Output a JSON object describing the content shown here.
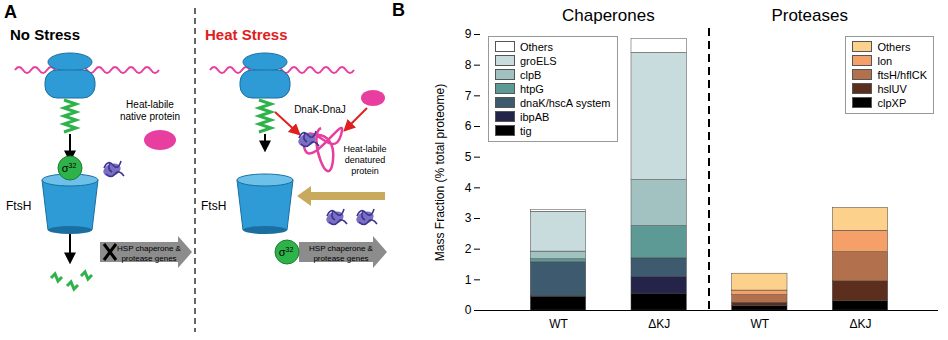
{
  "diagram": {
    "label": "A",
    "panels": [
      {
        "title": "No Stress",
        "protein": [
          "Heat-labile",
          "native protein"
        ],
        "protease": "FtsH",
        "sigma": {
          "symbol": "σ",
          "superscript": "32"
        },
        "genes": [
          "HSP chaperone &",
          "protease genes"
        ]
      },
      {
        "title": "Heat Stress",
        "chaperone": "DnaK-DnaJ",
        "protein": [
          "Heat-labile",
          "denatured",
          "protein"
        ],
        "protease": "FtsH",
        "sigma": {
          "symbol": "σ",
          "superscript": "32"
        },
        "genes": [
          "HSP chaperone &",
          "protease genes"
        ]
      }
    ]
  },
  "chart_data": {
    "type": "bar",
    "panel_label": "B",
    "stacked": true,
    "y_label": "Mass Fraction (% total proteome)",
    "ylim": [
      0,
      9
    ],
    "yticks": [
      0,
      1,
      2,
      3,
      4,
      5,
      6,
      7,
      8,
      9
    ],
    "groups": [
      {
        "title": "Chaperones",
        "legend": "upper left",
        "categories": [
          "WT",
          "ΔKJ"
        ],
        "series": [
          {
            "name": "tig",
            "color": "#000000",
            "values": [
              0.45,
              0.55
            ]
          },
          {
            "name": "ibpAB",
            "color": "#24244a",
            "values": [
              0.02,
              0.55
            ]
          },
          {
            "name": "dnaK/hscA system",
            "color": "#3d5a6e",
            "values": [
              1.1,
              0.6
            ]
          },
          {
            "name": "htpG",
            "color": "#5e9a95",
            "values": [
              0.1,
              1.05
            ]
          },
          {
            "name": "clpB",
            "color": "#a2c2c2",
            "values": [
              0.25,
              1.5
            ]
          },
          {
            "name": "groELS",
            "color": "#c9dcdd",
            "values": [
              1.3,
              4.15
            ]
          },
          {
            "name": "Others",
            "color": "#ffffff",
            "values": [
              0.05,
              0.45
            ]
          }
        ]
      },
      {
        "title": "Proteases",
        "legend": "upper right",
        "categories": [
          "WT",
          "ΔKJ"
        ],
        "series": [
          {
            "name": "clpXP",
            "color": "#000000",
            "values": [
              0.15,
              0.3
            ]
          },
          {
            "name": "hslUV",
            "color": "#5c2e1e",
            "values": [
              0.1,
              0.65
            ]
          },
          {
            "name": "ftsH/hflCK",
            "color": "#b3704c",
            "values": [
              0.25,
              0.95
            ]
          },
          {
            "name": "lon",
            "color": "#f4a068",
            "values": [
              0.15,
              0.7
            ]
          },
          {
            "name": "Others",
            "color": "#fcd18c",
            "values": [
              0.55,
              0.75
            ]
          }
        ]
      }
    ]
  }
}
